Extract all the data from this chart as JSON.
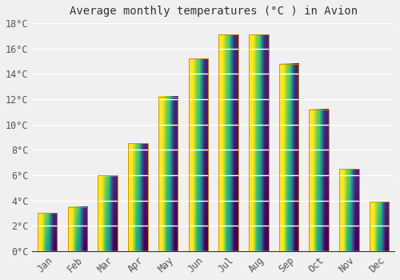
{
  "title": "Average monthly temperatures (°C ) in Avion",
  "months": [
    "Jan",
    "Feb",
    "Mar",
    "Apr",
    "May",
    "Jun",
    "Jul",
    "Aug",
    "Sep",
    "Oct",
    "Nov",
    "Dec"
  ],
  "values": [
    3.0,
    3.5,
    6.0,
    8.5,
    12.2,
    15.2,
    17.1,
    17.1,
    14.8,
    11.2,
    6.5,
    3.9
  ],
  "bar_color": "#FFA500",
  "bar_edge_color": "#CC8800",
  "ylim": [
    0,
    18
  ],
  "yticks": [
    0,
    2,
    4,
    6,
    8,
    10,
    12,
    14,
    16,
    18
  ],
  "ytick_labels": [
    "0°C",
    "2°C",
    "4°C",
    "6°C",
    "8°C",
    "10°C",
    "12°C",
    "14°C",
    "16°C",
    "18°C"
  ],
  "background_color": "#F0F0F0",
  "grid_color": "#FFFFFF",
  "title_fontsize": 10,
  "tick_fontsize": 8.5,
  "bar_width": 0.65
}
